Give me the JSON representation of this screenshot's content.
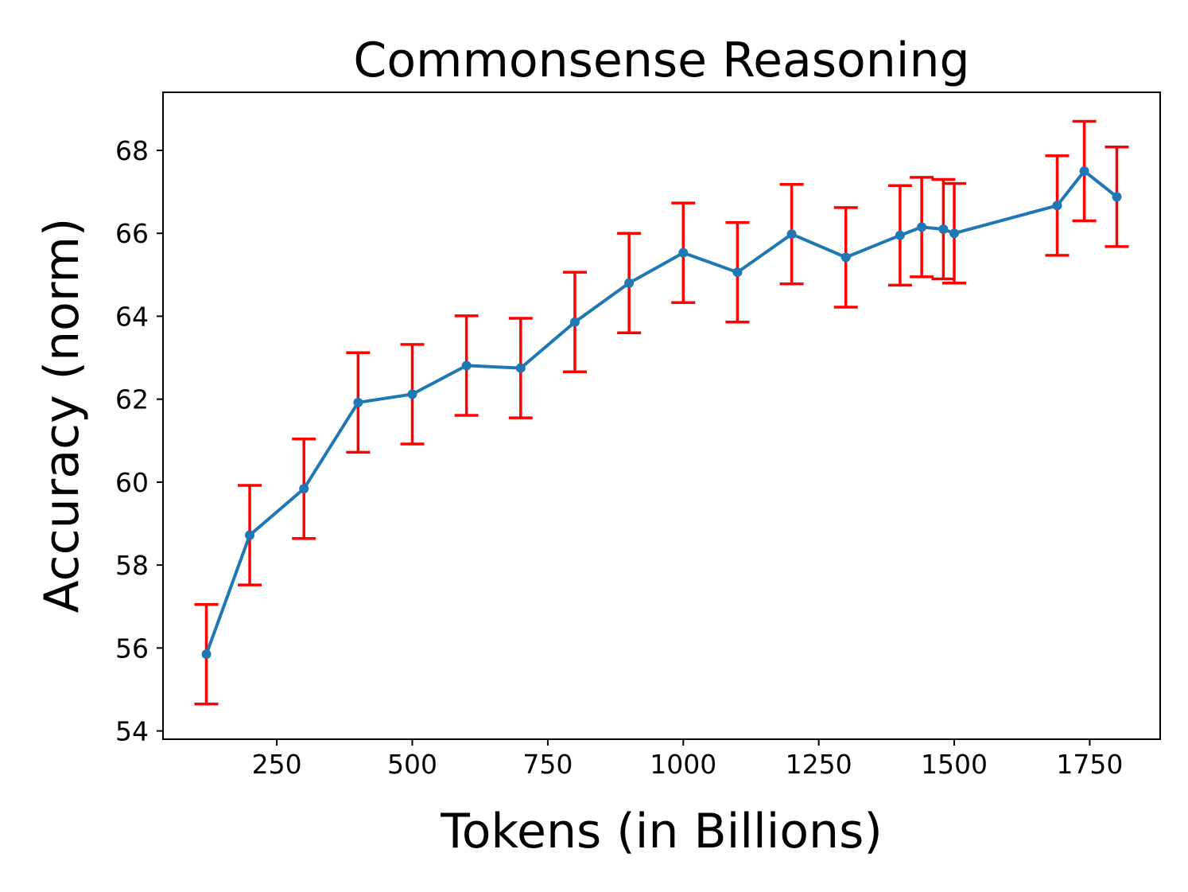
{
  "chart_data": {
    "type": "line",
    "title": "Commonsense Reasoning",
    "xlabel": "Tokens (in Billions)",
    "ylabel": "Accuracy (norm)",
    "xlim": [
      40,
      1880
    ],
    "ylim": [
      53.8,
      69.4
    ],
    "xticks": [
      250,
      500,
      750,
      1000,
      1250,
      1500,
      1750
    ],
    "yticks": [
      54,
      56,
      58,
      60,
      62,
      64,
      66,
      68
    ],
    "grid": false,
    "legend": "none",
    "series": [
      {
        "color": "#1f77b4",
        "error_bar_color": "#ff0000",
        "points": [
          {
            "x": 120,
            "y": 55.85,
            "err_low": 54.65,
            "err_high": 57.05
          },
          {
            "x": 200,
            "y": 58.72,
            "err_low": 57.52,
            "err_high": 59.92
          },
          {
            "x": 300,
            "y": 59.84,
            "err_low": 58.64,
            "err_high": 61.04
          },
          {
            "x": 400,
            "y": 61.92,
            "err_low": 60.72,
            "err_high": 63.12
          },
          {
            "x": 500,
            "y": 62.12,
            "err_low": 60.92,
            "err_high": 63.32
          },
          {
            "x": 600,
            "y": 62.81,
            "err_low": 61.61,
            "err_high": 64.01
          },
          {
            "x": 700,
            "y": 62.75,
            "err_low": 61.55,
            "err_high": 63.95
          },
          {
            "x": 800,
            "y": 63.86,
            "err_low": 62.66,
            "err_high": 65.06
          },
          {
            "x": 900,
            "y": 64.8,
            "err_low": 63.6,
            "err_high": 66.0
          },
          {
            "x": 1000,
            "y": 65.53,
            "err_low": 64.33,
            "err_high": 66.73
          },
          {
            "x": 1100,
            "y": 65.06,
            "err_low": 63.86,
            "err_high": 66.26
          },
          {
            "x": 1200,
            "y": 65.98,
            "err_low": 64.78,
            "err_high": 67.18
          },
          {
            "x": 1300,
            "y": 65.42,
            "err_low": 64.22,
            "err_high": 66.62
          },
          {
            "x": 1400,
            "y": 65.95,
            "err_low": 64.75,
            "err_high": 67.15
          },
          {
            "x": 1440,
            "y": 66.15,
            "err_low": 64.95,
            "err_high": 67.35
          },
          {
            "x": 1480,
            "y": 66.1,
            "err_low": 64.9,
            "err_high": 67.3
          },
          {
            "x": 1500,
            "y": 66.0,
            "err_low": 64.8,
            "err_high": 67.2
          },
          {
            "x": 1690,
            "y": 66.67,
            "err_low": 65.47,
            "err_high": 67.87
          },
          {
            "x": 1740,
            "y": 67.5,
            "err_low": 66.3,
            "err_high": 68.7
          },
          {
            "x": 1800,
            "y": 66.88,
            "err_low": 65.68,
            "err_high": 68.08
          }
        ]
      }
    ]
  }
}
